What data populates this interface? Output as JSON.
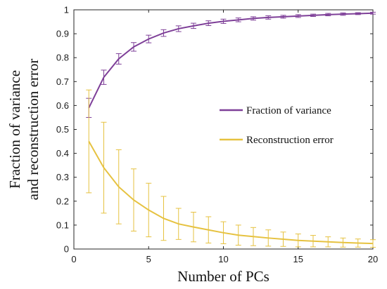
{
  "chart_data": {
    "type": "line",
    "xlabel": "Number of PCs",
    "ylabel_lines": [
      "Fraction of variance",
      "and reconstruction error"
    ],
    "xlim": [
      0,
      20
    ],
    "ylim": [
      0,
      1
    ],
    "xticks": [
      0,
      5,
      10,
      15,
      20
    ],
    "yticks": [
      0,
      0.1,
      0.2,
      0.3,
      0.4,
      0.5,
      0.6,
      0.7,
      0.8,
      0.9,
      1
    ],
    "grid": false,
    "legend_position": "right",
    "x": [
      1,
      2,
      3,
      4,
      5,
      6,
      7,
      8,
      9,
      10,
      11,
      12,
      13,
      14,
      15,
      16,
      17,
      18,
      19,
      20
    ],
    "series": [
      {
        "name": "Fraction of variance",
        "color": "#7e3f98",
        "values": [
          0.59,
          0.718,
          0.795,
          0.845,
          0.878,
          0.903,
          0.921,
          0.933,
          0.944,
          0.952,
          0.958,
          0.964,
          0.968,
          0.971,
          0.974,
          0.977,
          0.98,
          0.982,
          0.984,
          0.986
        ],
        "error": [
          0.04,
          0.03,
          0.022,
          0.018,
          0.016,
          0.014,
          0.012,
          0.011,
          0.01,
          0.009,
          0.008,
          0.007,
          0.007,
          0.006,
          0.006,
          0.005,
          0.005,
          0.005,
          0.004,
          0.004
        ]
      },
      {
        "name": "Reconstruction error",
        "color": "#e6c240",
        "values": [
          0.45,
          0.34,
          0.26,
          0.205,
          0.163,
          0.128,
          0.105,
          0.092,
          0.08,
          0.068,
          0.058,
          0.052,
          0.046,
          0.041,
          0.036,
          0.033,
          0.03,
          0.027,
          0.025,
          0.023
        ],
        "error": [
          0.215,
          0.19,
          0.155,
          0.13,
          0.112,
          0.092,
          0.065,
          0.062,
          0.055,
          0.046,
          0.042,
          0.038,
          0.034,
          0.03,
          0.027,
          0.024,
          0.021,
          0.019,
          0.017,
          0.016
        ]
      }
    ]
  }
}
